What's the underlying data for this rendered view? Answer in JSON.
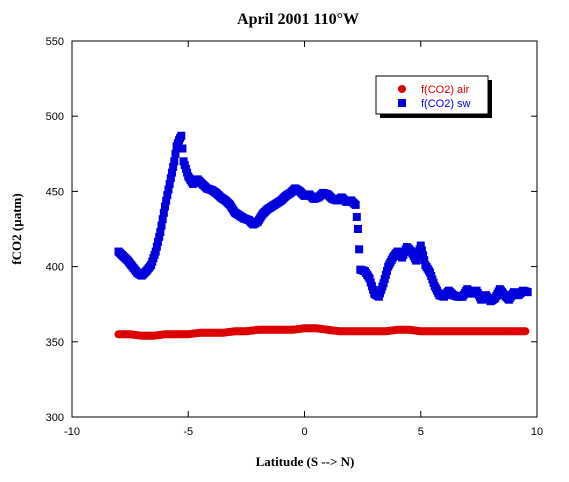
{
  "chart_data": {
    "type": "scatter",
    "title": "April 2001 110°W",
    "xlabel": "Latitude (S --> N)",
    "ylabel": "fCO2 (µatm)",
    "xlim": [
      -10,
      10
    ],
    "ylim": [
      300,
      550
    ],
    "xticks": [
      -10,
      -5,
      0,
      5,
      10
    ],
    "yticks": [
      300,
      350,
      400,
      450,
      500,
      550
    ],
    "grid": false,
    "legend_position": "top-right",
    "series": [
      {
        "name": "f(CO2) air",
        "marker": "circle",
        "color": "#dd0000",
        "x": [
          -8.0,
          -7.5,
          -7.0,
          -6.5,
          -6.0,
          -5.5,
          -5.0,
          -4.5,
          -4.0,
          -3.5,
          -3.0,
          -2.5,
          -2.0,
          -1.5,
          -1.0,
          -0.5,
          0.0,
          0.5,
          1.0,
          1.5,
          2.0,
          2.5,
          3.0,
          3.5,
          4.0,
          4.5,
          5.0,
          5.5,
          6.0,
          6.5,
          7.0,
          7.5,
          8.0,
          8.5,
          9.0,
          9.5
        ],
        "y": [
          355,
          355,
          354,
          354,
          355,
          355,
          355,
          356,
          356,
          356,
          357,
          357,
          358,
          358,
          358,
          358,
          359,
          359,
          358,
          357,
          357,
          357,
          357,
          357,
          358,
          358,
          357,
          357,
          357,
          357,
          357,
          357,
          357,
          357,
          357,
          357
        ]
      },
      {
        "name": "f(CO2) sw",
        "marker": "square",
        "color": "#0000dd",
        "x": [
          -8.0,
          -7.8,
          -7.6,
          -7.4,
          -7.2,
          -7.0,
          -6.8,
          -6.6,
          -6.4,
          -6.2,
          -6.0,
          -5.8,
          -5.6,
          -5.5,
          -5.4,
          -5.3,
          -5.2,
          -5.0,
          -4.8,
          -4.6,
          -4.4,
          -4.2,
          -4.0,
          -3.8,
          -3.6,
          -3.4,
          -3.2,
          -3.0,
          -2.8,
          -2.6,
          -2.4,
          -2.2,
          -2.0,
          -1.8,
          -1.6,
          -1.4,
          -1.2,
          -1.0,
          -0.8,
          -0.6,
          -0.4,
          -0.2,
          0.0,
          0.2,
          0.4,
          0.6,
          0.8,
          1.0,
          1.2,
          1.4,
          1.6,
          1.8,
          2.0,
          2.2,
          2.3,
          2.4,
          2.6,
          2.8,
          3.0,
          3.2,
          3.4,
          3.6,
          3.8,
          4.0,
          4.2,
          4.4,
          4.6,
          4.8,
          5.0,
          5.2,
          5.4,
          5.6,
          5.8,
          6.0,
          6.2,
          6.4,
          6.6,
          6.8,
          7.0,
          7.2,
          7.4,
          7.6,
          7.8,
          8.0,
          8.2,
          8.4,
          8.6,
          8.8,
          9.0,
          9.2,
          9.4,
          9.6
        ],
        "y": [
          410,
          407,
          404,
          400,
          396,
          394,
          397,
          401,
          410,
          423,
          440,
          455,
          470,
          480,
          484,
          487,
          470,
          460,
          455,
          458,
          455,
          452,
          451,
          449,
          446,
          444,
          441,
          436,
          434,
          432,
          431,
          428,
          430,
          435,
          438,
          440,
          442,
          444,
          447,
          449,
          452,
          450,
          447,
          448,
          445,
          446,
          449,
          448,
          445,
          444,
          446,
          443,
          444,
          441,
          425,
          398,
          397,
          392,
          382,
          380,
          389,
          400,
          406,
          410,
          406,
          413,
          410,
          404,
          414,
          401,
          396,
          387,
          381,
          380,
          384,
          381,
          380,
          380,
          385,
          382,
          384,
          378,
          381,
          377,
          379,
          385,
          381,
          378,
          383,
          381,
          384,
          383
        ]
      }
    ]
  }
}
